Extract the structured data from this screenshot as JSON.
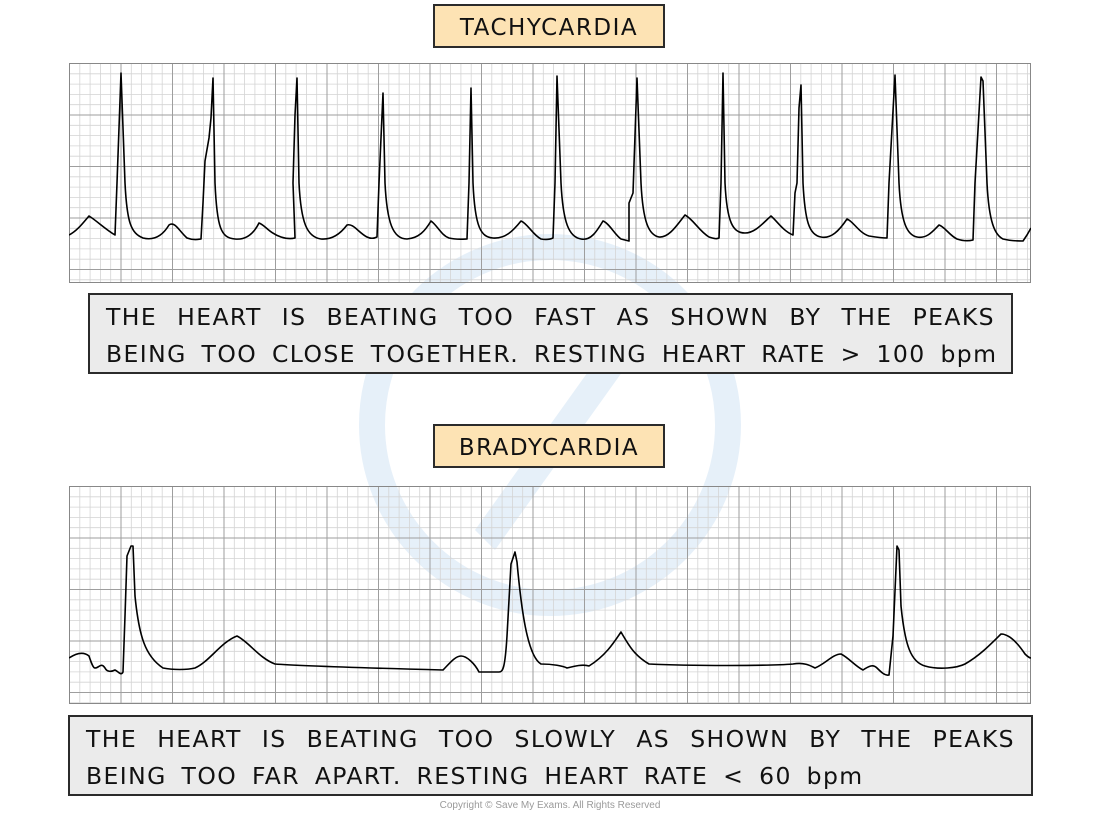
{
  "tachycardia": {
    "title": "TACHYCARDIA",
    "caption_line1": "THE HEART IS BEATING TOO FAST AS SHOWN BY THE PEAKS",
    "caption_line2": "BEING TOO CLOSE TOGETHER. RESTING HEART RATE > 100 bpm"
  },
  "bradycardia": {
    "title": "BRADYCARDIA",
    "caption_line1": "THE HEART IS BEATING TOO SLOWLY AS SHOWN BY THE PEAKS",
    "caption_line2": "BEING TOO FAR APART. RESTING HEART RATE < 60 bpm"
  },
  "footer": {
    "copyright": "Copyright © Save My Exams. All Rights Reserved"
  },
  "colors": {
    "title_fill": "#fde3b4",
    "caption_fill": "#ebebeb",
    "grid_minor": "#d4d4d4",
    "grid_major": "#9e9e9e",
    "trace": "#000000",
    "watermark": "#e3eef8"
  },
  "icons": {
    "watermark": "save-my-exams-logo-watermark"
  }
}
